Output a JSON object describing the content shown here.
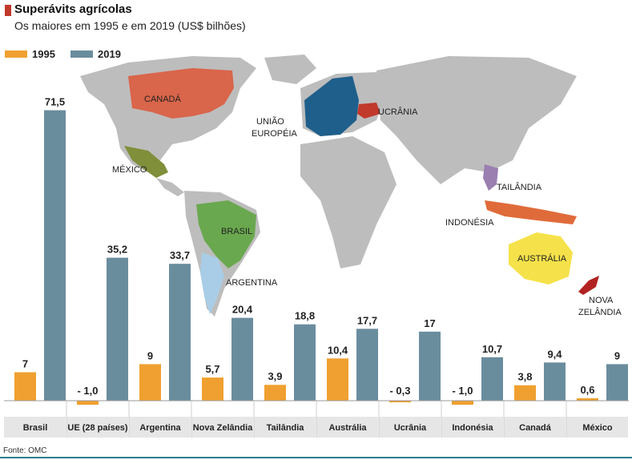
{
  "chart_data": {
    "type": "bar",
    "title": "Superávits agrícolas",
    "subtitle": "Os maiores em 1995 e em 2019 (US$ bilhões)",
    "source": "Fonte: OMC",
    "categories": [
      "Brasil",
      "UE (28 países)",
      "Argentina",
      "Nova Zelândia",
      "Tailândia",
      "Austrália",
      "Ucrânia",
      "Indonésia",
      "Canadá",
      "México"
    ],
    "series": [
      {
        "name": "1995",
        "color": "#f0a030",
        "values": [
          7,
          -1.0,
          9,
          5.7,
          3.9,
          10.4,
          -0.3,
          -1.0,
          3.8,
          0.6
        ],
        "labels": [
          "7",
          "- 1,0",
          "9",
          "5,7",
          "3,9",
          "10,4",
          "- 0,3",
          "- 1,0",
          "3,8",
          "0,6"
        ]
      },
      {
        "name": "2019",
        "color": "#6a8d9e",
        "values": [
          71.5,
          35.2,
          33.7,
          20.4,
          18.8,
          17.7,
          17,
          10.7,
          9.4,
          9
        ],
        "labels": [
          "71,5",
          "35,2",
          "33,7",
          "20,4",
          "18,8",
          "17,7",
          "17",
          "10,7",
          "9,4",
          "9"
        ]
      }
    ],
    "ylim": [
      -2,
      75
    ],
    "grid": false,
    "legend": "top-left"
  },
  "map": {
    "labels": [
      "CANADÁ",
      "MÉXICO",
      "BRASIL",
      "ARGENTINA",
      "UNIÃO",
      "EUROPÉIA",
      "UCRÂNIA",
      "TAILÂNDIA",
      "INDONÉSIA",
      "AUSTRÁLIA",
      "NOVA",
      "ZELÂNDIA"
    ],
    "colors": {
      "canada": "#d9654a",
      "mexico": "#7f8f3a",
      "brasil": "#6aa84f",
      "argentina": "#a9cde6",
      "eu": "#1f5f8b",
      "ukraine": "#c0392b",
      "thailand": "#9b7fb0",
      "indonesia": "#e06b3a",
      "australia": "#f5e24a",
      "newzealand": "#b22222",
      "land": "#bdbdbd"
    }
  }
}
